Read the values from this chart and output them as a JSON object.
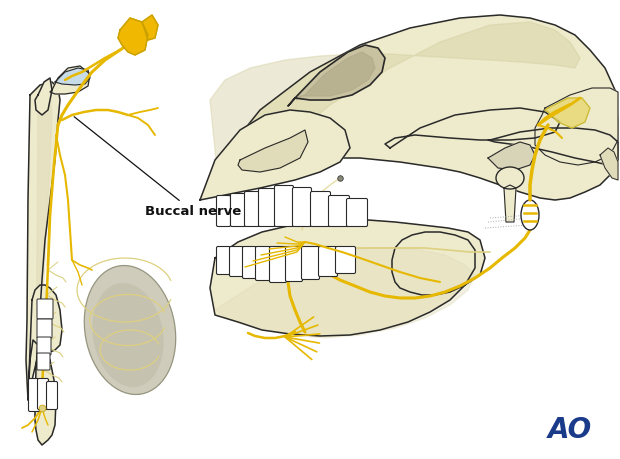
{
  "background_color": "#ffffff",
  "label_buccal": "Buccal nerve",
  "ao_text": "AO",
  "ao_color": "#1a3a8a",
  "ao_fontsize": 20,
  "bone_color": "#eeeacc",
  "bone_color2": "#e0dbb8",
  "bone_edge": "#2a2a2a",
  "nerve_yellow": "#e6b800",
  "nerve_dark": "#c8a000",
  "nerve_light": "#ddd080",
  "blue_highlight": "#c8dce8",
  "yellow_ganglion": "#f0b800",
  "muscle_color": "#c0bca8",
  "shadow_color": "#d0cc9a"
}
